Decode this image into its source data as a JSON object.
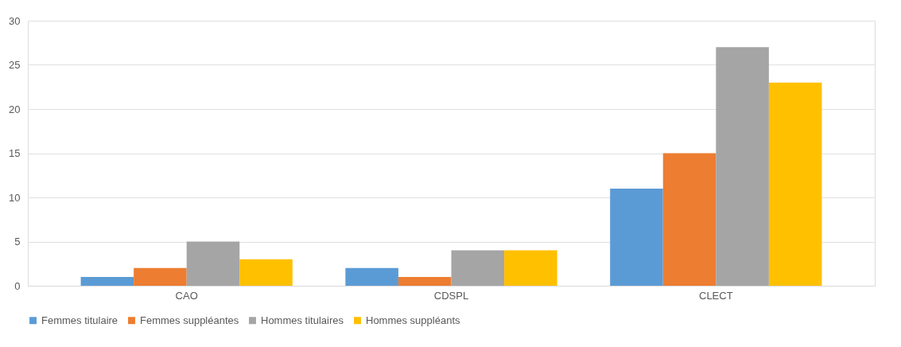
{
  "chart_data": {
    "type": "bar",
    "categories": [
      "CAO",
      "CDSPL",
      "CLECT"
    ],
    "series": [
      {
        "name": "Femmes titulaire",
        "color": "#5b9bd5",
        "values": [
          1,
          2,
          11
        ]
      },
      {
        "name": "Femmes suppléantes",
        "color": "#ed7d31",
        "values": [
          2,
          1,
          15
        ]
      },
      {
        "name": "Hommes titulaires",
        "color": "#a5a5a5",
        "values": [
          5,
          4,
          27
        ]
      },
      {
        "name": "Hommes suppléants",
        "color": "#ffc000",
        "values": [
          3,
          4,
          23
        ]
      }
    ],
    "ylim": [
      0,
      30
    ],
    "yticks": [
      0,
      5,
      10,
      15,
      20,
      25,
      30
    ],
    "grid": "y",
    "legend": "bottom"
  }
}
